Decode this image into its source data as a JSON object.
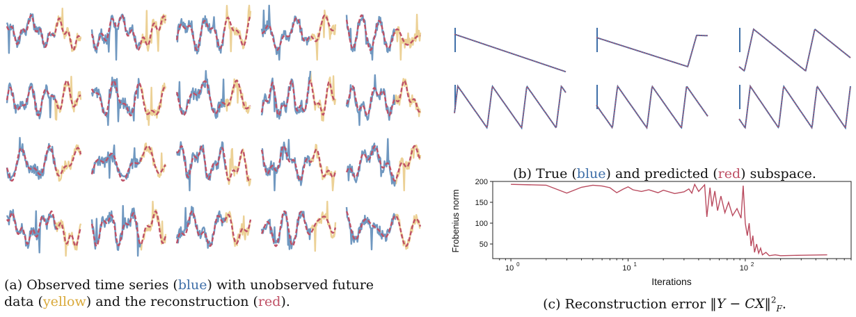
{
  "colors": {
    "observed": "#7098c0",
    "future": "#ecd196",
    "reconstruction": "#bf5166",
    "true_subspace": "#3f6fa8",
    "error_line": "#b94a5e"
  },
  "captions": {
    "a": {
      "prefix": "(a) Observed time series (",
      "blue": "blue",
      "middle": ") with unobserved future",
      "line2_prefix": "data (",
      "yellow": "yellow",
      "line2_middle": ") and the reconstruction (",
      "red": "red",
      "line2_suffix": ")."
    },
    "b": {
      "prefix": "(b) True (",
      "blue": "blue",
      "middle": ") and predicted (",
      "red": "red",
      "suffix": ") subspace."
    },
    "c": {
      "prefix": "(c) Reconstruction error ",
      "norm_open": "‖",
      "Y": "Y",
      "minus": " − ",
      "CX": "CX",
      "norm_close": "‖",
      "sup": "2",
      "sub": "F",
      "suffix": "."
    }
  },
  "chart_data": [
    {
      "id": "a",
      "type": "line",
      "description_grid": {
        "rows": 4,
        "cols": 5
      },
      "series": [
        {
          "name": "",
          "role": "observed"
        },
        {
          "name": "",
          "role": "future"
        },
        {
          "name": "",
          "role": "reconstruction"
        }
      ]
    },
    {
      "id": "b",
      "type": "line",
      "grid": {
        "rows": 2,
        "cols": 3
      },
      "panels": [
        {
          "shape": "decreasing-linear"
        },
        {
          "shape": "decreasing-then-rise",
          "rise_at": 0.82
        },
        {
          "shape": "sawtooth",
          "period": 0.55,
          "phase": 0.42
        },
        {
          "shape": "sawtooth",
          "period": 0.31,
          "phase": 0.28
        },
        {
          "shape": "sawtooth",
          "period": 0.31,
          "phase": 0.12
        },
        {
          "shape": "sawtooth",
          "period": 0.3,
          "phase": 0.2
        }
      ]
    },
    {
      "id": "c",
      "type": "line",
      "xlabel": "Iterations",
      "ylabel": "Frobenius norm",
      "xscale": "log",
      "xlim": [
        0.7,
        800
      ],
      "ylim": [
        15,
        200
      ],
      "xticks": [
        {
          "value": 1,
          "label": "10",
          "exp": "0"
        },
        {
          "value": 10,
          "label": "10",
          "exp": "1"
        },
        {
          "value": 100,
          "label": "10",
          "exp": "2"
        }
      ],
      "yticks": [
        50,
        100,
        150,
        200
      ],
      "series": [
        {
          "name": "",
          "points": [
            [
              1,
              193
            ],
            [
              2,
              191
            ],
            [
              3,
              172
            ],
            [
              4,
              186
            ],
            [
              5,
              191
            ],
            [
              6,
              189
            ],
            [
              7,
              185
            ],
            [
              8,
              173
            ],
            [
              9,
              181
            ],
            [
              10,
              187
            ],
            [
              11,
              180
            ],
            [
              13,
              176
            ],
            [
              15,
              180
            ],
            [
              18,
              173
            ],
            [
              20,
              179
            ],
            [
              25,
              171
            ],
            [
              30,
              175
            ],
            [
              33,
              182
            ],
            [
              35,
              172
            ],
            [
              37,
              193
            ],
            [
              40,
              176
            ],
            [
              45,
              192
            ],
            [
              47,
              115
            ],
            [
              50,
              185
            ],
            [
              52,
              140
            ],
            [
              55,
              177
            ],
            [
              58,
              130
            ],
            [
              62,
              165
            ],
            [
              67,
              125
            ],
            [
              72,
              150
            ],
            [
              78,
              118
            ],
            [
              85,
              135
            ],
            [
              92,
              112
            ],
            [
              96,
              190
            ],
            [
              100,
              100
            ],
            [
              104,
              70
            ],
            [
              108,
              100
            ],
            [
              112,
              45
            ],
            [
              116,
              70
            ],
            [
              120,
              30
            ],
            [
              125,
              50
            ],
            [
              130,
              28
            ],
            [
              135,
              40
            ],
            [
              140,
              24
            ],
            [
              150,
              30
            ],
            [
              160,
              22
            ],
            [
              180,
              24
            ],
            [
              200,
              22
            ],
            [
              300,
              23
            ],
            [
              500,
              24
            ]
          ]
        }
      ]
    }
  ]
}
